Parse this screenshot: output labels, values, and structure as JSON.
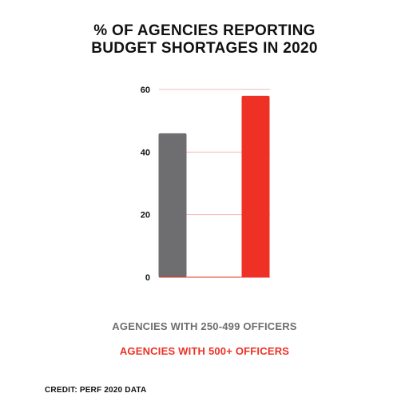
{
  "title_lines": [
    "% OF AGENCIES REPORTING",
    "BUDGET SHORTAGES IN 2020"
  ],
  "credit": "CREDIT: PERF 2020 DATA",
  "colors": {
    "gray": "#6e6e70",
    "red": "#ee3124",
    "grid": "#f2b8b8",
    "axis": "#ee3124"
  },
  "chart_data": {
    "type": "bar",
    "title": "% OF AGENCIES REPORTING BUDGET SHORTAGES IN 2020",
    "categories": [
      "AGENCIES WITH 250-499 OFFICERS",
      "AGENCIES WITH 500+ OFFICERS"
    ],
    "values": [
      46,
      58
    ],
    "bar_colors": [
      "#6e6e70",
      "#ee3124"
    ],
    "ylim": [
      0,
      60
    ],
    "yticks": [
      0,
      20,
      40,
      60
    ],
    "ytick_labels": [
      "0",
      "20",
      "40",
      "60"
    ],
    "grid": true,
    "legend_position": "bottom"
  }
}
